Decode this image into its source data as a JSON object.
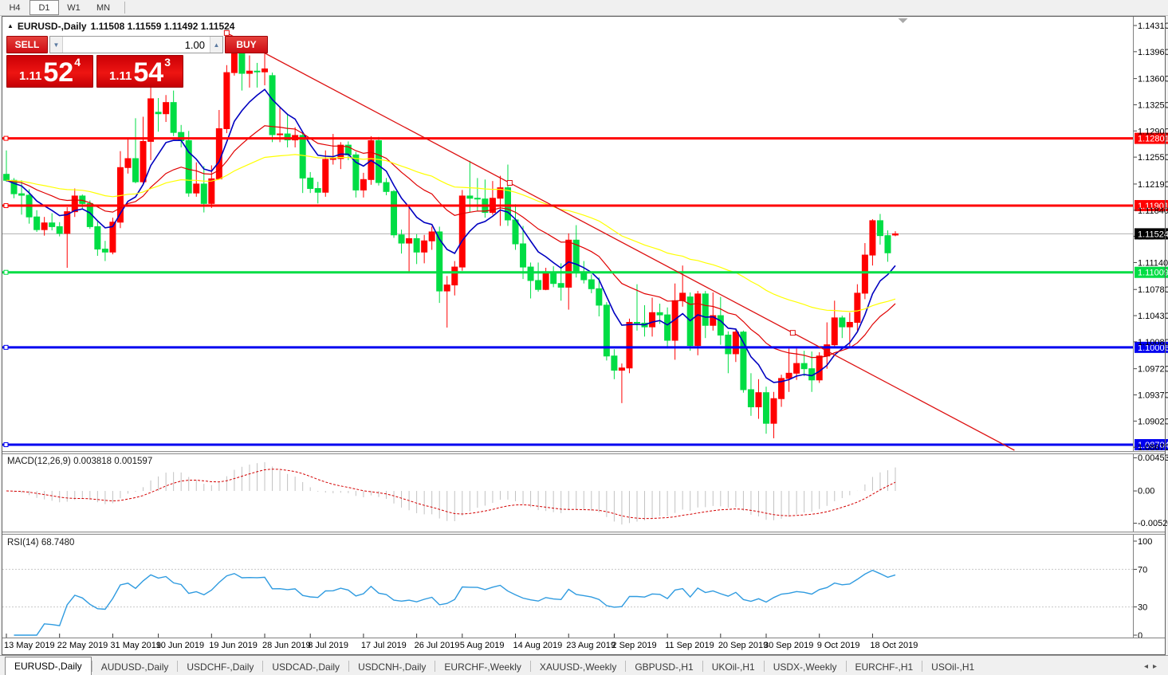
{
  "toolbar": {
    "timeframes": [
      "H4",
      "D1",
      "W1",
      "MN"
    ],
    "active_timeframe": "D1"
  },
  "title": {
    "symbol_arrow": "▲",
    "symbol_period": "EURUSD-,Daily",
    "ohlc": "1.11508 1.11559 1.11492 1.11524"
  },
  "one_click": {
    "sell_label": "SELL",
    "buy_label": "BUY",
    "volume": "1.00",
    "spin_down_icon": "▼",
    "spin_up_icon": "▲",
    "sell_price": {
      "prefix": "1.11",
      "main": "52",
      "sup": "4"
    },
    "buy_price": {
      "prefix": "1.11",
      "main": "54",
      "sup": "3"
    }
  },
  "chart_data": {
    "type": "candlestick",
    "symbol": "EURUSD-",
    "period": "Daily",
    "colors": {
      "bull": "#ff0000",
      "bear": "#00dd44",
      "bg": "#ffffff",
      "ma_fast": "#0000c0",
      "ma_mid": "#e00000",
      "ma_slow": "#ffff00",
      "trendline": "#dd1111",
      "current_line": "#b0b0b0",
      "current_badge": "#000000",
      "macd_hist": "#c2c2c2",
      "macd_signal": "#d40000",
      "rsi_line": "#2f9be0"
    },
    "moving_averages": [
      {
        "name": "fast",
        "type": "ema",
        "period": 8,
        "color_key": "ma_fast"
      },
      {
        "name": "mid",
        "type": "ema",
        "period": 21,
        "color_key": "ma_mid"
      },
      {
        "name": "slow",
        "type": "ema",
        "period": 55,
        "color_key": "ma_slow"
      }
    ],
    "hlines": [
      {
        "price": 1.12801,
        "label": "1.12801",
        "color": "#ff0000"
      },
      {
        "price": 1.11901,
        "label": "1.11901",
        "color": "#ff0000"
      },
      {
        "price": 1.11009,
        "label": "1.11009",
        "color": "#00dd44"
      },
      {
        "price": 1.10006,
        "label": "1.10006",
        "color": "#0000f0"
      },
      {
        "price": 1.08704,
        "label": "1.08704",
        "color": "#0000f0"
      }
    ],
    "trendline": {
      "i1": 29,
      "p1": 1.1421,
      "i2": 103.5,
      "p2": 1.102,
      "ray": true
    },
    "current_price": {
      "value": 1.11524,
      "label": "1.11524"
    },
    "shift_marker_i": 118,
    "y_axis_labels": [
      "1.14310",
      "1.13960",
      "1.13600",
      "1.13250",
      "1.12900",
      "1.12550",
      "1.12190",
      "1.11840",
      "1.11490",
      "1.11140",
      "1.10780",
      "1.10430",
      "1.10080",
      "1.09720",
      "1.09370",
      "1.09020",
      "1.08670"
    ],
    "x_labels": [
      {
        "text": "13 May 2019",
        "i": 0
      },
      {
        "text": "22 May 2019",
        "i": 7
      },
      {
        "text": "31 May 2019",
        "i": 14
      },
      {
        "text": "10 Jun 2019",
        "i": 20
      },
      {
        "text": "19 Jun 2019",
        "i": 27
      },
      {
        "text": "28 Jun 2019",
        "i": 34
      },
      {
        "text": "8 Jul 2019",
        "i": 40
      },
      {
        "text": "17 Jul 2019",
        "i": 47
      },
      {
        "text": "26 Jul 2019",
        "i": 54
      },
      {
        "text": "5 Aug 2019",
        "i": 60
      },
      {
        "text": "14 Aug 2019",
        "i": 67
      },
      {
        "text": "23 Aug 2019",
        "i": 74
      },
      {
        "text": "2 Sep 2019",
        "i": 80
      },
      {
        "text": "11 Sep 2019",
        "i": 87
      },
      {
        "text": "20 Sep 2019",
        "i": 94
      },
      {
        "text": "30 Sep 2019",
        "i": 100
      },
      {
        "text": "9 Oct 2019",
        "i": 107
      },
      {
        "text": "18 Oct 2019",
        "i": 114
      }
    ],
    "candles": [
      [
        1.1232,
        1.1264,
        1.1222,
        1.1224
      ],
      [
        1.1224,
        1.1227,
        1.12,
        1.1206
      ],
      [
        1.1206,
        1.1224,
        1.1178,
        1.1204
      ],
      [
        1.1204,
        1.1212,
        1.1166,
        1.1175
      ],
      [
        1.1175,
        1.1184,
        1.1155,
        1.1158
      ],
      [
        1.1158,
        1.1175,
        1.115,
        1.1167
      ],
      [
        1.1167,
        1.118,
        1.1157,
        1.1162
      ],
      [
        1.1162,
        1.1168,
        1.1149,
        1.1153
      ],
      [
        1.1153,
        1.1188,
        1.1107,
        1.1182
      ],
      [
        1.1182,
        1.1213,
        1.1175,
        1.1203
      ],
      [
        1.1203,
        1.1205,
        1.1186,
        1.1193
      ],
      [
        1.1193,
        1.1197,
        1.1159,
        1.1162
      ],
      [
        1.1162,
        1.1169,
        1.1123,
        1.1132
      ],
      [
        1.1132,
        1.1143,
        1.1116,
        1.1128
      ],
      [
        1.1128,
        1.1174,
        1.1125,
        1.1168
      ],
      [
        1.1168,
        1.1263,
        1.116,
        1.1241
      ],
      [
        1.1241,
        1.128,
        1.1233,
        1.1253
      ],
      [
        1.1253,
        1.1307,
        1.122,
        1.1222
      ],
      [
        1.1222,
        1.1309,
        1.1219,
        1.1276
      ],
      [
        1.1276,
        1.1348,
        1.1251,
        1.1333
      ],
      [
        1.1315,
        1.1334,
        1.1289,
        1.1313
      ],
      [
        1.1313,
        1.1338,
        1.1302,
        1.1328
      ],
      [
        1.1328,
        1.1344,
        1.1283,
        1.1288
      ],
      [
        1.1288,
        1.1298,
        1.1268,
        1.1277
      ],
      [
        1.1277,
        1.129,
        1.1202,
        1.1207
      ],
      [
        1.1207,
        1.1248,
        1.1202,
        1.1219
      ],
      [
        1.1219,
        1.1243,
        1.1181,
        1.1193
      ],
      [
        1.1193,
        1.1244,
        1.1187,
        1.1226
      ],
      [
        1.1226,
        1.1318,
        1.1226,
        1.1293
      ],
      [
        1.1293,
        1.1378,
        1.1287,
        1.1368
      ],
      [
        1.1368,
        1.1406,
        1.1364,
        1.1399
      ],
      [
        1.1399,
        1.1412,
        1.1344,
        1.1367
      ],
      [
        1.1367,
        1.1391,
        1.1348,
        1.137
      ],
      [
        1.137,
        1.1381,
        1.1348,
        1.1369
      ],
      [
        1.1369,
        1.1394,
        1.1351,
        1.1373
      ],
      [
        1.1364,
        1.1368,
        1.1275,
        1.1285
      ],
      [
        1.1285,
        1.1322,
        1.1275,
        1.1286
      ],
      [
        1.1286,
        1.1312,
        1.1268,
        1.1278
      ],
      [
        1.1278,
        1.1295,
        1.1268,
        1.1284
      ],
      [
        1.1284,
        1.1288,
        1.1207,
        1.1227
      ],
      [
        1.1227,
        1.1235,
        1.1207,
        1.1213
      ],
      [
        1.1213,
        1.1222,
        1.1193,
        1.1208
      ],
      [
        1.1208,
        1.1264,
        1.1202,
        1.1252
      ],
      [
        1.1252,
        1.1286,
        1.1245,
        1.1253
      ],
      [
        1.1253,
        1.1275,
        1.1239,
        1.1271
      ],
      [
        1.1271,
        1.1276,
        1.1251,
        1.1258
      ],
      [
        1.1258,
        1.1262,
        1.1201,
        1.1211
      ],
      [
        1.1211,
        1.1234,
        1.1201,
        1.1225
      ],
      [
        1.1225,
        1.1283,
        1.1218,
        1.1277
      ],
      [
        1.1277,
        1.1282,
        1.1217,
        1.1221
      ],
      [
        1.1221,
        1.1227,
        1.1204,
        1.1209
      ],
      [
        1.1209,
        1.1211,
        1.1147,
        1.1151
      ],
      [
        1.1151,
        1.1158,
        1.1126,
        1.114
      ],
      [
        1.114,
        1.1187,
        1.1101,
        1.1146
      ],
      [
        1.1146,
        1.1152,
        1.1112,
        1.1128
      ],
      [
        1.1128,
        1.1151,
        1.1113,
        1.1143
      ],
      [
        1.1143,
        1.1162,
        1.1131,
        1.1155
      ],
      [
        1.1155,
        1.1162,
        1.106,
        1.1076
      ],
      [
        1.1076,
        1.1096,
        1.1027,
        1.1084
      ],
      [
        1.1084,
        1.1116,
        1.107,
        1.1108
      ],
      [
        1.1108,
        1.1211,
        1.1103,
        1.1203
      ],
      [
        1.1203,
        1.125,
        1.1181,
        1.12
      ],
      [
        1.12,
        1.1227,
        1.1183,
        1.1199
      ],
      [
        1.1199,
        1.1225,
        1.1174,
        1.1181
      ],
      [
        1.1181,
        1.1223,
        1.1178,
        1.12
      ],
      [
        1.12,
        1.123,
        1.1163,
        1.1214
      ],
      [
        1.1214,
        1.1245,
        1.1163,
        1.1171
      ],
      [
        1.1171,
        1.1192,
        1.1131,
        1.1139
      ],
      [
        1.1139,
        1.1163,
        1.1092,
        1.1108
      ],
      [
        1.1108,
        1.1114,
        1.1066,
        1.109
      ],
      [
        1.109,
        1.1114,
        1.1075,
        1.1078
      ],
      [
        1.1078,
        1.1107,
        1.1077,
        1.1099
      ],
      [
        1.1099,
        1.1109,
        1.1081,
        1.1086
      ],
      [
        1.1086,
        1.1113,
        1.1063,
        1.1081
      ],
      [
        1.1081,
        1.1153,
        1.1051,
        1.1144
      ],
      [
        1.1144,
        1.1164,
        1.1094,
        1.1101
      ],
      [
        1.1101,
        1.1116,
        1.1086,
        1.1091
      ],
      [
        1.1091,
        1.1098,
        1.1073,
        1.1079
      ],
      [
        1.1079,
        1.1094,
        1.1042,
        1.1057
      ],
      [
        1.1057,
        1.1061,
        1.0983,
        1.0989
      ],
      [
        1.0989,
        1.0998,
        1.0958,
        1.097
      ],
      [
        1.097,
        1.0979,
        1.0926,
        1.0973
      ],
      [
        1.0973,
        1.1039,
        1.0966,
        1.1034
      ],
      [
        1.1034,
        1.1085,
        1.1023,
        1.1033
      ],
      [
        1.1033,
        1.1057,
        1.1015,
        1.1028
      ],
      [
        1.1028,
        1.1067,
        1.1015,
        1.1047
      ],
      [
        1.1047,
        1.1059,
        1.1032,
        1.1044
      ],
      [
        1.1044,
        1.1054,
        1.0999,
        1.101
      ],
      [
        1.101,
        1.1086,
        1.0984,
        1.1063
      ],
      [
        1.1063,
        1.111,
        1.1055,
        1.1073
      ],
      [
        1.1068,
        1.1074,
        1.0996,
        1.1003
      ],
      [
        1.1003,
        1.1076,
        1.099,
        1.1072
      ],
      [
        1.1072,
        1.1076,
        1.1013,
        1.103
      ],
      [
        1.103,
        1.1074,
        1.1023,
        1.1043
      ],
      [
        1.1043,
        1.1068,
        1.1004,
        1.1017
      ],
      [
        1.1017,
        1.1022,
        1.0966,
        1.0992
      ],
      [
        1.0992,
        1.1024,
        1.0981,
        1.1021
      ],
      [
        1.1021,
        1.1023,
        1.094,
        1.0944
      ],
      [
        1.0944,
        1.0966,
        1.0909,
        1.0921
      ],
      [
        1.0921,
        1.0958,
        1.0905,
        1.094
      ],
      [
        1.094,
        1.0948,
        1.0885,
        1.0899
      ],
      [
        1.0899,
        1.0941,
        1.0879,
        1.0932
      ],
      [
        1.0932,
        1.0964,
        1.0921,
        1.0959
      ],
      [
        1.0959,
        1.0999,
        1.0941,
        1.0966
      ],
      [
        1.0966,
        1.0999,
        1.0957,
        1.0979
      ],
      [
        1.0979,
        1.0996,
        1.0962,
        1.0972
      ],
      [
        1.0972,
        1.0995,
        1.0941,
        1.0957
      ],
      [
        1.0957,
        1.0994,
        1.0953,
        1.0989
      ],
      [
        1.0989,
        1.1034,
        1.0972,
        1.1004
      ],
      [
        1.1004,
        1.1063,
        1.1002,
        1.104
      ],
      [
        1.104,
        1.1043,
        1.1013,
        1.1028
      ],
      [
        1.1028,
        1.1047,
        1.1001,
        1.1034
      ],
      [
        1.1034,
        1.1085,
        1.1023,
        1.1073
      ],
      [
        1.1073,
        1.114,
        1.1065,
        1.1124
      ],
      [
        1.1124,
        1.1172,
        1.111,
        1.117
      ],
      [
        1.117,
        1.1179,
        1.1138,
        1.115
      ],
      [
        1.115,
        1.1157,
        1.1115,
        1.1127
      ],
      [
        1.11508,
        1.11559,
        1.11492,
        1.11524
      ]
    ],
    "macd": {
      "label": "MACD(12,26,9) 0.003818 0.001597",
      "fast": 12,
      "slow": 26,
      "signal": 9,
      "value_main": 0.003818,
      "value_signal": 0.001597,
      "axis": {
        "max": "0.004536",
        "zero": "0.00",
        "min": "-0.005205"
      },
      "axis_max": 0.004536,
      "axis_min": -0.005205
    },
    "rsi": {
      "label": "RSI(14) 68.7480",
      "period": 14,
      "value": 68.748,
      "levels": [
        70,
        30
      ],
      "axis_labels": [
        "100",
        "70",
        "30",
        "0"
      ]
    }
  },
  "tabs": {
    "items": [
      "EURUSD-,Daily",
      "AUDUSD-,Daily",
      "USDCHF-,Daily",
      "USDCAD-,Daily",
      "USDCNH-,Daily",
      "EURCHF-,Weekly",
      "XAUUSD-,Weekly",
      "GBPUSD-,H1",
      "UKOil-,H1",
      "USDX-,Weekly",
      "EURCHF-,H1",
      "USOil-,H1"
    ],
    "active_index": 0,
    "scroll_left_icon": "◂",
    "scroll_right_icon": "▸"
  }
}
